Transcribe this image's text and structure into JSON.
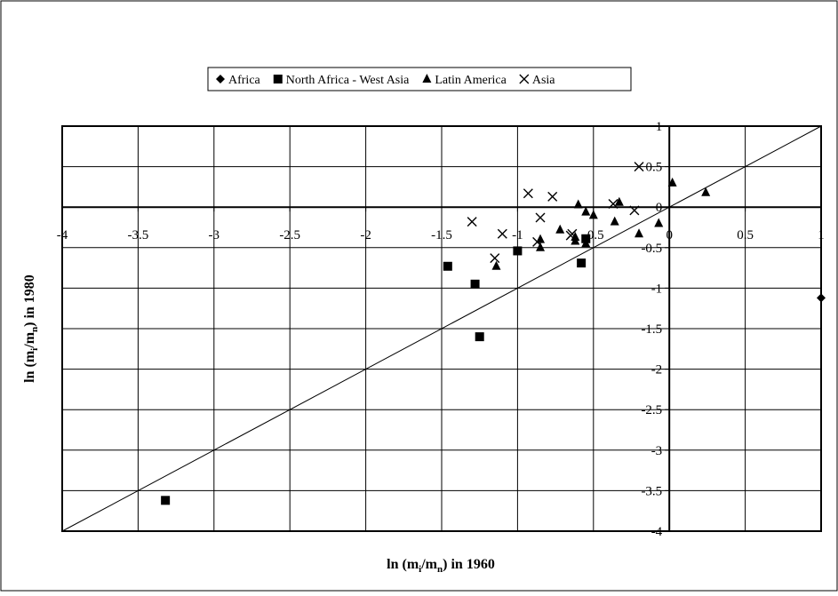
{
  "chart_data": {
    "type": "scatter",
    "title": "",
    "xlabel": {
      "main": "ln (m",
      "sub1": "i",
      "mid": "/m",
      "sub2": "n",
      "tail": ") in 1960"
    },
    "ylabel": {
      "main": "ln (m",
      "sub1": "i",
      "mid": "/m",
      "sub2": "n",
      "tail": ") in 1980"
    },
    "xlim": [
      -4,
      1
    ],
    "ylim": [
      -4,
      1
    ],
    "x_ticks": [
      "-4",
      "-3.5",
      "-3",
      "-2.5",
      "-2",
      "-1.5",
      "-1",
      "-0.5",
      "0",
      "0.5",
      "1"
    ],
    "y_ticks": [
      "1",
      "0.5",
      "0",
      "-0.5",
      "-1",
      "-1.5",
      "-2",
      "-2.5",
      "-3",
      "-3.5",
      "-4"
    ],
    "x_tick_values": [
      -4,
      -3.5,
      -3,
      -2.5,
      -2,
      -1.5,
      -1,
      -0.5,
      0,
      0.5,
      1
    ],
    "y_tick_values": [
      1,
      0.5,
      0,
      -0.5,
      -1,
      -1.5,
      -2,
      -2.5,
      -3,
      -3.5,
      -4
    ],
    "grid": true,
    "reference_line": {
      "type": "identity",
      "from": [
        -4,
        -4
      ],
      "to": [
        1,
        1
      ]
    },
    "legend_position": "top-center",
    "series": [
      {
        "name": "Africa",
        "marker": "diamond",
        "points": [
          [
            1.0,
            -1.12
          ]
        ]
      },
      {
        "name": "North Africa - West Asia",
        "marker": "square",
        "points": [
          [
            -3.32,
            -3.62
          ],
          [
            -1.46,
            -0.73
          ],
          [
            -1.28,
            -0.95
          ],
          [
            -1.25,
            -1.6
          ],
          [
            -1.0,
            -0.54
          ],
          [
            -0.55,
            -0.39
          ],
          [
            -0.58,
            -0.69
          ]
        ]
      },
      {
        "name": "Latin America",
        "marker": "triangle",
        "points": [
          [
            0.02,
            0.3
          ],
          [
            0.24,
            0.18
          ],
          [
            -1.14,
            -0.73
          ],
          [
            -0.85,
            -0.5
          ],
          [
            -0.85,
            -0.4
          ],
          [
            -0.72,
            -0.28
          ],
          [
            -0.62,
            -0.42
          ],
          [
            -0.62,
            -0.37
          ],
          [
            -0.6,
            0.03
          ],
          [
            -0.55,
            -0.45
          ],
          [
            -0.55,
            -0.06
          ],
          [
            -0.5,
            -0.1
          ],
          [
            -0.36,
            -0.18
          ],
          [
            -0.33,
            0.06
          ],
          [
            -0.2,
            -0.33
          ],
          [
            -0.07,
            -0.2
          ]
        ]
      },
      {
        "name": "Asia",
        "marker": "x",
        "points": [
          [
            -0.93,
            0.17
          ],
          [
            -0.77,
            0.13
          ],
          [
            -1.3,
            -0.18
          ],
          [
            -1.1,
            -0.33
          ],
          [
            -1.15,
            -0.63
          ],
          [
            -0.87,
            -0.43
          ],
          [
            -0.85,
            -0.13
          ],
          [
            -0.64,
            -0.33
          ],
          [
            -0.65,
            -0.35
          ],
          [
            -0.37,
            0.04
          ],
          [
            -0.23,
            -0.04
          ],
          [
            -0.2,
            0.5
          ]
        ]
      }
    ]
  }
}
